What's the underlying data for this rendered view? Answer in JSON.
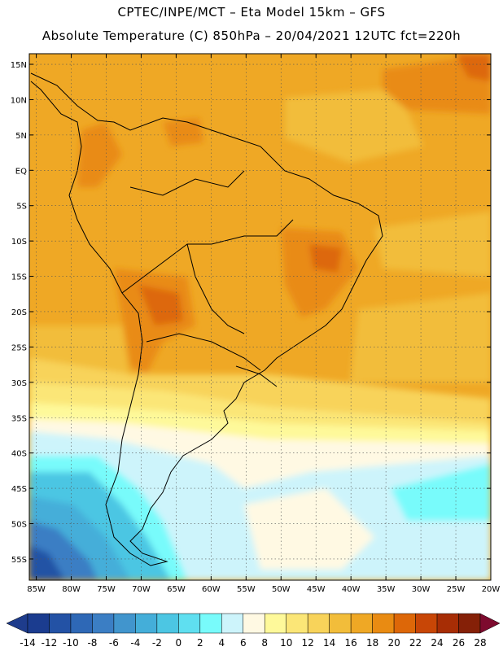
{
  "title": {
    "line1": "CPTEC/INPE/MCT –  Eta Model 15km – GFS",
    "line2": "Absolute Temperature (C) 850hPa – 20/04/2021 12UTC fct=220h"
  },
  "map": {
    "lat_labels": [
      "15N",
      "10N",
      "5N",
      "EQ",
      "5S",
      "10S",
      "15S",
      "20S",
      "25S",
      "30S",
      "35S",
      "40S",
      "45S",
      "50S",
      "55S"
    ],
    "lon_labels": [
      "85W",
      "80W",
      "75W",
      "70W",
      "65W",
      "60W",
      "55W",
      "50W",
      "45W",
      "40W",
      "35W",
      "30W",
      "25W",
      "20W"
    ],
    "lat_range": [
      16.5,
      -58
    ],
    "lon_range": [
      -86,
      -20
    ]
  },
  "legend": {
    "values": [
      "-14",
      "-12",
      "-10",
      "-8",
      "-6",
      "-4",
      "-2",
      "0",
      "2",
      "4",
      "6",
      "8",
      "10",
      "12",
      "14",
      "16",
      "18",
      "20",
      "22",
      "24",
      "26",
      "28"
    ],
    "colors": [
      "#1b3c8f",
      "#2352a5",
      "#2e68b6",
      "#3b7ec4",
      "#4195cd",
      "#44aed9",
      "#4cc6e3",
      "#5fdff0",
      "#78fbfb",
      "#cdf4fb",
      "#fff9e3",
      "#fef99a",
      "#fbe677",
      "#f8d35a",
      "#f2bd3a",
      "#efa825",
      "#e98b12",
      "#dd6708",
      "#c84606",
      "#a72d05",
      "#852007"
    ],
    "low_color": "#1e3c8c",
    "high_color": "#7d0a2e"
  }
}
